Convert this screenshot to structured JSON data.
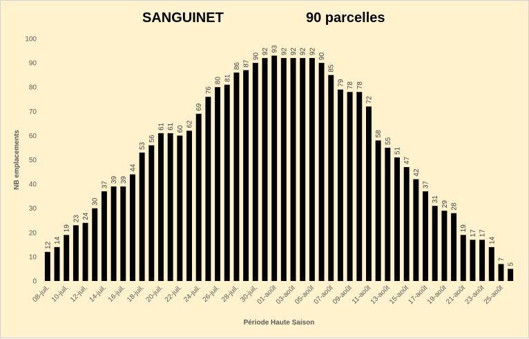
{
  "chart_data": {
    "type": "bar",
    "title": "SANGUINET",
    "subtitle": "90 parcelles",
    "xlabel": "Période Haute Saison",
    "ylabel": "NB emplacements",
    "ylim": [
      0,
      100
    ],
    "yticks": [
      0,
      10,
      20,
      30,
      40,
      50,
      60,
      70,
      80,
      90,
      100
    ],
    "grid": false,
    "bar_color": "#000000",
    "categories": [
      "08-juil.",
      "09-juil.",
      "10-juil.",
      "11-juil.",
      "12-juil.",
      "13-juil.",
      "14-juil.",
      "15-juil.",
      "16-juil.",
      "17-juil.",
      "18-juil.",
      "19-juil.",
      "20-juil.",
      "21-juil.",
      "22-juil.",
      "23-juil.",
      "24-juil.",
      "25-juil.",
      "26-juil.",
      "27-juil.",
      "28-juil.",
      "29-juil.",
      "30-juil.",
      "31-juil.",
      "01-août",
      "02-août",
      "03-août",
      "04-août",
      "05-août",
      "06-août",
      "07-août",
      "08-août",
      "09-août",
      "10-août",
      "11-août",
      "12-août",
      "13-août",
      "14-août",
      "15-août",
      "16-août",
      "17-août",
      "18-août",
      "19-août",
      "20-août",
      "21-août",
      "22-août",
      "23-août",
      "24-août",
      "25-août",
      "26-août"
    ],
    "visible_tick_labels": [
      "08-juil.",
      "10-juil.",
      "12-juil.",
      "14-juil.",
      "16-juil.",
      "18-juil.",
      "20-juil.",
      "22-juil.",
      "24-juil.",
      "26-juil.",
      "28-juil.",
      "30-juil.",
      "01-août",
      "03-août",
      "05-août",
      "07-août",
      "09-août",
      "11-août",
      "13-août",
      "15-août",
      "17-août",
      "19-août",
      "21-août",
      "23-août",
      "25-août"
    ],
    "values": [
      12,
      14,
      19,
      23,
      24,
      30,
      37,
      39,
      39,
      44,
      53,
      56,
      61,
      61,
      60,
      62,
      69,
      76,
      80,
      81,
      86,
      87,
      90,
      92,
      93,
      92,
      92,
      92,
      92,
      90,
      85,
      79,
      78,
      78,
      72,
      58,
      55,
      51,
      47,
      42,
      37,
      31,
      29,
      28,
      19,
      17,
      17,
      14,
      7,
      5
    ]
  }
}
